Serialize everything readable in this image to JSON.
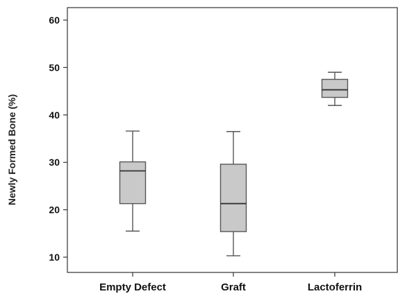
{
  "chart_data": {
    "type": "boxplot",
    "title": "",
    "xlabel": "",
    "ylabel": "Newly Formed Bone  (%)",
    "ylim": [
      10,
      60
    ],
    "yticks": [
      10,
      20,
      30,
      40,
      50,
      60
    ],
    "grid": false,
    "legend": "none",
    "categories": [
      "Empty Defect",
      "Graft",
      "Lactoferrin"
    ],
    "boxes": [
      {
        "category": "Empty Defect",
        "min": 15.5,
        "q1": 21.3,
        "median": 28.2,
        "q3": 30.1,
        "max": 36.6
      },
      {
        "category": "Graft",
        "min": 10.3,
        "q1": 15.4,
        "median": 21.3,
        "q3": 29.6,
        "max": 36.5
      },
      {
        "category": "Lactoferrin",
        "min": 42.0,
        "q1": 43.7,
        "median": 45.3,
        "q3": 47.5,
        "max": 49.0
      }
    ],
    "colors": {
      "box_fill": "#c9c9c9",
      "box_stroke": "#555555",
      "axis": "#333333"
    }
  }
}
